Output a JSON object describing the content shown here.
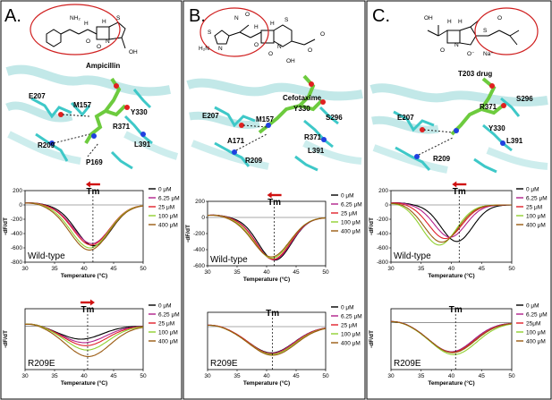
{
  "panels": [
    {
      "letter": "A.",
      "structure": {
        "drug_label": "Ampicillin",
        "residues": [
          "E207",
          "M157",
          "Y330",
          "R371",
          "R209",
          "L391",
          "P169"
        ],
        "atoms": [
          "NH₂",
          "H",
          "H",
          "S",
          "N",
          "O",
          "O",
          "OH"
        ]
      },
      "top_chart": {
        "annotation": "Wild-type",
        "tm_label": "Tm",
        "arrow_dir": "left"
      },
      "bottom_chart": {
        "annotation": "R209E",
        "tm_label": "Tm",
        "arrow_dir": "right"
      }
    },
    {
      "letter": "B.",
      "structure": {
        "drug_label": "Cefotaxime",
        "residues": [
          "E207",
          "M157",
          "Y330",
          "S296",
          "R371",
          "A171",
          "R209",
          "L391"
        ],
        "atoms": [
          "O",
          "N",
          "S",
          "H₂N",
          "H",
          "H",
          "N",
          "S",
          "N",
          "O",
          "O",
          "OH",
          "O",
          "O"
        ]
      },
      "top_chart": {
        "annotation": "Wild-type",
        "tm_label": "Tm",
        "arrow_dir": "left"
      },
      "bottom_chart": {
        "annotation": "R209E",
        "tm_label": "Tm",
        "arrow_dir": "none"
      }
    },
    {
      "letter": "C.",
      "structure": {
        "drug_label": "T203 drug",
        "residues": [
          "S296",
          "R371",
          "E207",
          "Y330",
          "L391",
          "R209"
        ],
        "atoms": [
          "OH",
          "H",
          "H",
          "S",
          "N",
          "O",
          "O",
          "O⁻",
          "Na⁺"
        ]
      },
      "top_chart": {
        "annotation": "Wild-type",
        "tm_label": "Tm",
        "arrow_dir": "left"
      },
      "bottom_chart": {
        "annotation": "R209E",
        "tm_label": "Tm",
        "arrow_dir": "none"
      }
    }
  ],
  "chart_data": [
    {
      "type": "line",
      "panel": "A",
      "position": "top",
      "title": "",
      "xlabel": "Temperature (°C)",
      "ylabel": "-dF/dT",
      "xlim": [
        30,
        50
      ],
      "ylim": [
        -800,
        200
      ],
      "xticks": [
        30,
        35,
        40,
        45,
        50
      ],
      "yticks": [
        -800,
        -600,
        -400,
        -200,
        0,
        200
      ],
      "tm_x": 41.5,
      "legend_position": "right",
      "series": [
        {
          "name": "0 μM",
          "color": "#000000",
          "center": 41.6,
          "min": -570,
          "width": 3.0
        },
        {
          "name": "6.25 μM",
          "color": "#b0208a",
          "center": 41.3,
          "min": -540,
          "width": 3.1
        },
        {
          "name": "25 μM",
          "color": "#e0202a",
          "center": 41.2,
          "min": -560,
          "width": 3.1
        },
        {
          "name": "100 μM",
          "color": "#90d030",
          "center": 41.0,
          "min": -600,
          "width": 3.2
        },
        {
          "name": "400 μM",
          "color": "#9a5a10",
          "center": 40.9,
          "min": -630,
          "width": 3.3
        }
      ]
    },
    {
      "type": "line",
      "panel": "A",
      "position": "bottom",
      "title": "",
      "xlabel": "Temperature (°C)",
      "ylabel": "-dF/dT",
      "xlim": [
        30,
        50
      ],
      "ylim": [
        -100,
        40
      ],
      "xticks": [
        30,
        35,
        40,
        45,
        50
      ],
      "yticks": [],
      "tm_x": 40.6,
      "legend_position": "right",
      "series": [
        {
          "name": "0 μM",
          "color": "#000000",
          "center": 39.5,
          "min": -30,
          "width": 3.5
        },
        {
          "name": "6.25 μM",
          "color": "#b0208a",
          "center": 40.0,
          "min": -38,
          "width": 3.6
        },
        {
          "name": "25 μM",
          "color": "#e0202a",
          "center": 40.3,
          "min": -45,
          "width": 3.6
        },
        {
          "name": "100 μM",
          "color": "#90d030",
          "center": 40.5,
          "min": -55,
          "width": 3.6
        },
        {
          "name": "400 μM",
          "color": "#9a5a10",
          "center": 40.7,
          "min": -70,
          "width": 3.7
        }
      ]
    },
    {
      "type": "line",
      "panel": "B",
      "position": "top",
      "title": "",
      "xlabel": "Temperature (°C)",
      "ylabel": "-dF/dT",
      "xlim": [
        30,
        50
      ],
      "ylim": [
        -600,
        200
      ],
      "xticks": [
        30,
        35,
        40,
        45,
        50
      ],
      "yticks": [
        -600,
        -400,
        -200,
        0,
        200
      ],
      "tm_x": 41.3,
      "legend_position": "right",
      "series": [
        {
          "name": "0 μM",
          "color": "#000000",
          "center": 41.4,
          "min": -530,
          "width": 2.8
        },
        {
          "name": "6.25 μM",
          "color": "#b0208a",
          "center": 41.2,
          "min": -525,
          "width": 2.9
        },
        {
          "name": "25 μM",
          "color": "#e0202a",
          "center": 41.1,
          "min": -520,
          "width": 2.9
        },
        {
          "name": "100 μM",
          "color": "#90d030",
          "center": 40.9,
          "min": -505,
          "width": 3.0
        },
        {
          "name": "400 μM",
          "color": "#9a5a10",
          "center": 40.8,
          "min": -490,
          "width": 3.1
        }
      ]
    },
    {
      "type": "line",
      "panel": "B",
      "position": "bottom",
      "title": "",
      "xlabel": "Temperature (°C)",
      "ylabel": "",
      "xlim": [
        30,
        50
      ],
      "ylim": [
        -90,
        30
      ],
      "xticks": [
        30,
        35,
        40,
        45,
        50
      ],
      "yticks": [],
      "tm_x": 41.0,
      "legend_position": "right",
      "series": [
        {
          "name": "0 μM",
          "color": "#000000",
          "center": 40.8,
          "min": -55,
          "width": 3.8
        },
        {
          "name": "6.25 μM",
          "color": "#b0208a",
          "center": 40.8,
          "min": -56,
          "width": 3.8
        },
        {
          "name": "25 μM",
          "color": "#e0202a",
          "center": 40.9,
          "min": -57,
          "width": 3.8
        },
        {
          "name": "100 μM",
          "color": "#90d030",
          "center": 40.9,
          "min": -58,
          "width": 3.9
        },
        {
          "name": "400 μM",
          "color": "#9a5a10",
          "center": 41.0,
          "min": -60,
          "width": 3.9
        }
      ]
    },
    {
      "type": "line",
      "panel": "C",
      "position": "top",
      "title": "",
      "xlabel": "Temperature (°C)",
      "ylabel": "-dF/dT",
      "xlim": [
        30,
        50
      ],
      "ylim": [
        -800,
        200
      ],
      "xticks": [
        30,
        35,
        40,
        45,
        50
      ],
      "yticks": [
        -800,
        -600,
        -400,
        -200,
        0,
        200
      ],
      "tm_x": 41.3,
      "legend_position": "right",
      "series": [
        {
          "name": "0 μM",
          "color": "#000000",
          "center": 40.9,
          "min": -510,
          "width": 2.6
        },
        {
          "name": "6.25 μM",
          "color": "#b0208a",
          "center": 39.8,
          "min": -450,
          "width": 2.6
        },
        {
          "name": "25 μM",
          "color": "#e0202a",
          "center": 39.0,
          "min": -470,
          "width": 2.7
        },
        {
          "name": "100 μM",
          "color": "#90d030",
          "center": 38.0,
          "min": -560,
          "width": 2.8
        },
        {
          "name": "400 μM",
          "color": "#9a5a10",
          "center": 38.4,
          "min": -520,
          "width": 2.8
        }
      ]
    },
    {
      "type": "line",
      "panel": "C",
      "position": "bottom",
      "title": "",
      "xlabel": "Temperature (°C)",
      "ylabel": "-dF/dT",
      "xlim": [
        30,
        50
      ],
      "ylim": [
        -100,
        30
      ],
      "xticks": [
        30,
        35,
        40,
        45,
        50
      ],
      "yticks": [],
      "tm_x": 40.7,
      "legend_position": "right",
      "series": [
        {
          "name": "0 μM",
          "color": "#000000",
          "center": 40.0,
          "min": -62,
          "width": 3.6
        },
        {
          "name": "6.25 μM",
          "color": "#b0208a",
          "center": 40.0,
          "min": -62,
          "width": 3.6
        },
        {
          "name": "25μM",
          "color": "#e0202a",
          "center": 40.1,
          "min": -63,
          "width": 3.7
        },
        {
          "name": "100 μM",
          "color": "#90d030",
          "center": 40.4,
          "min": -68,
          "width": 3.8
        },
        {
          "name": "400 μM",
          "color": "#9a5a10",
          "center": 40.2,
          "min": -64,
          "width": 3.7
        }
      ]
    }
  ]
}
